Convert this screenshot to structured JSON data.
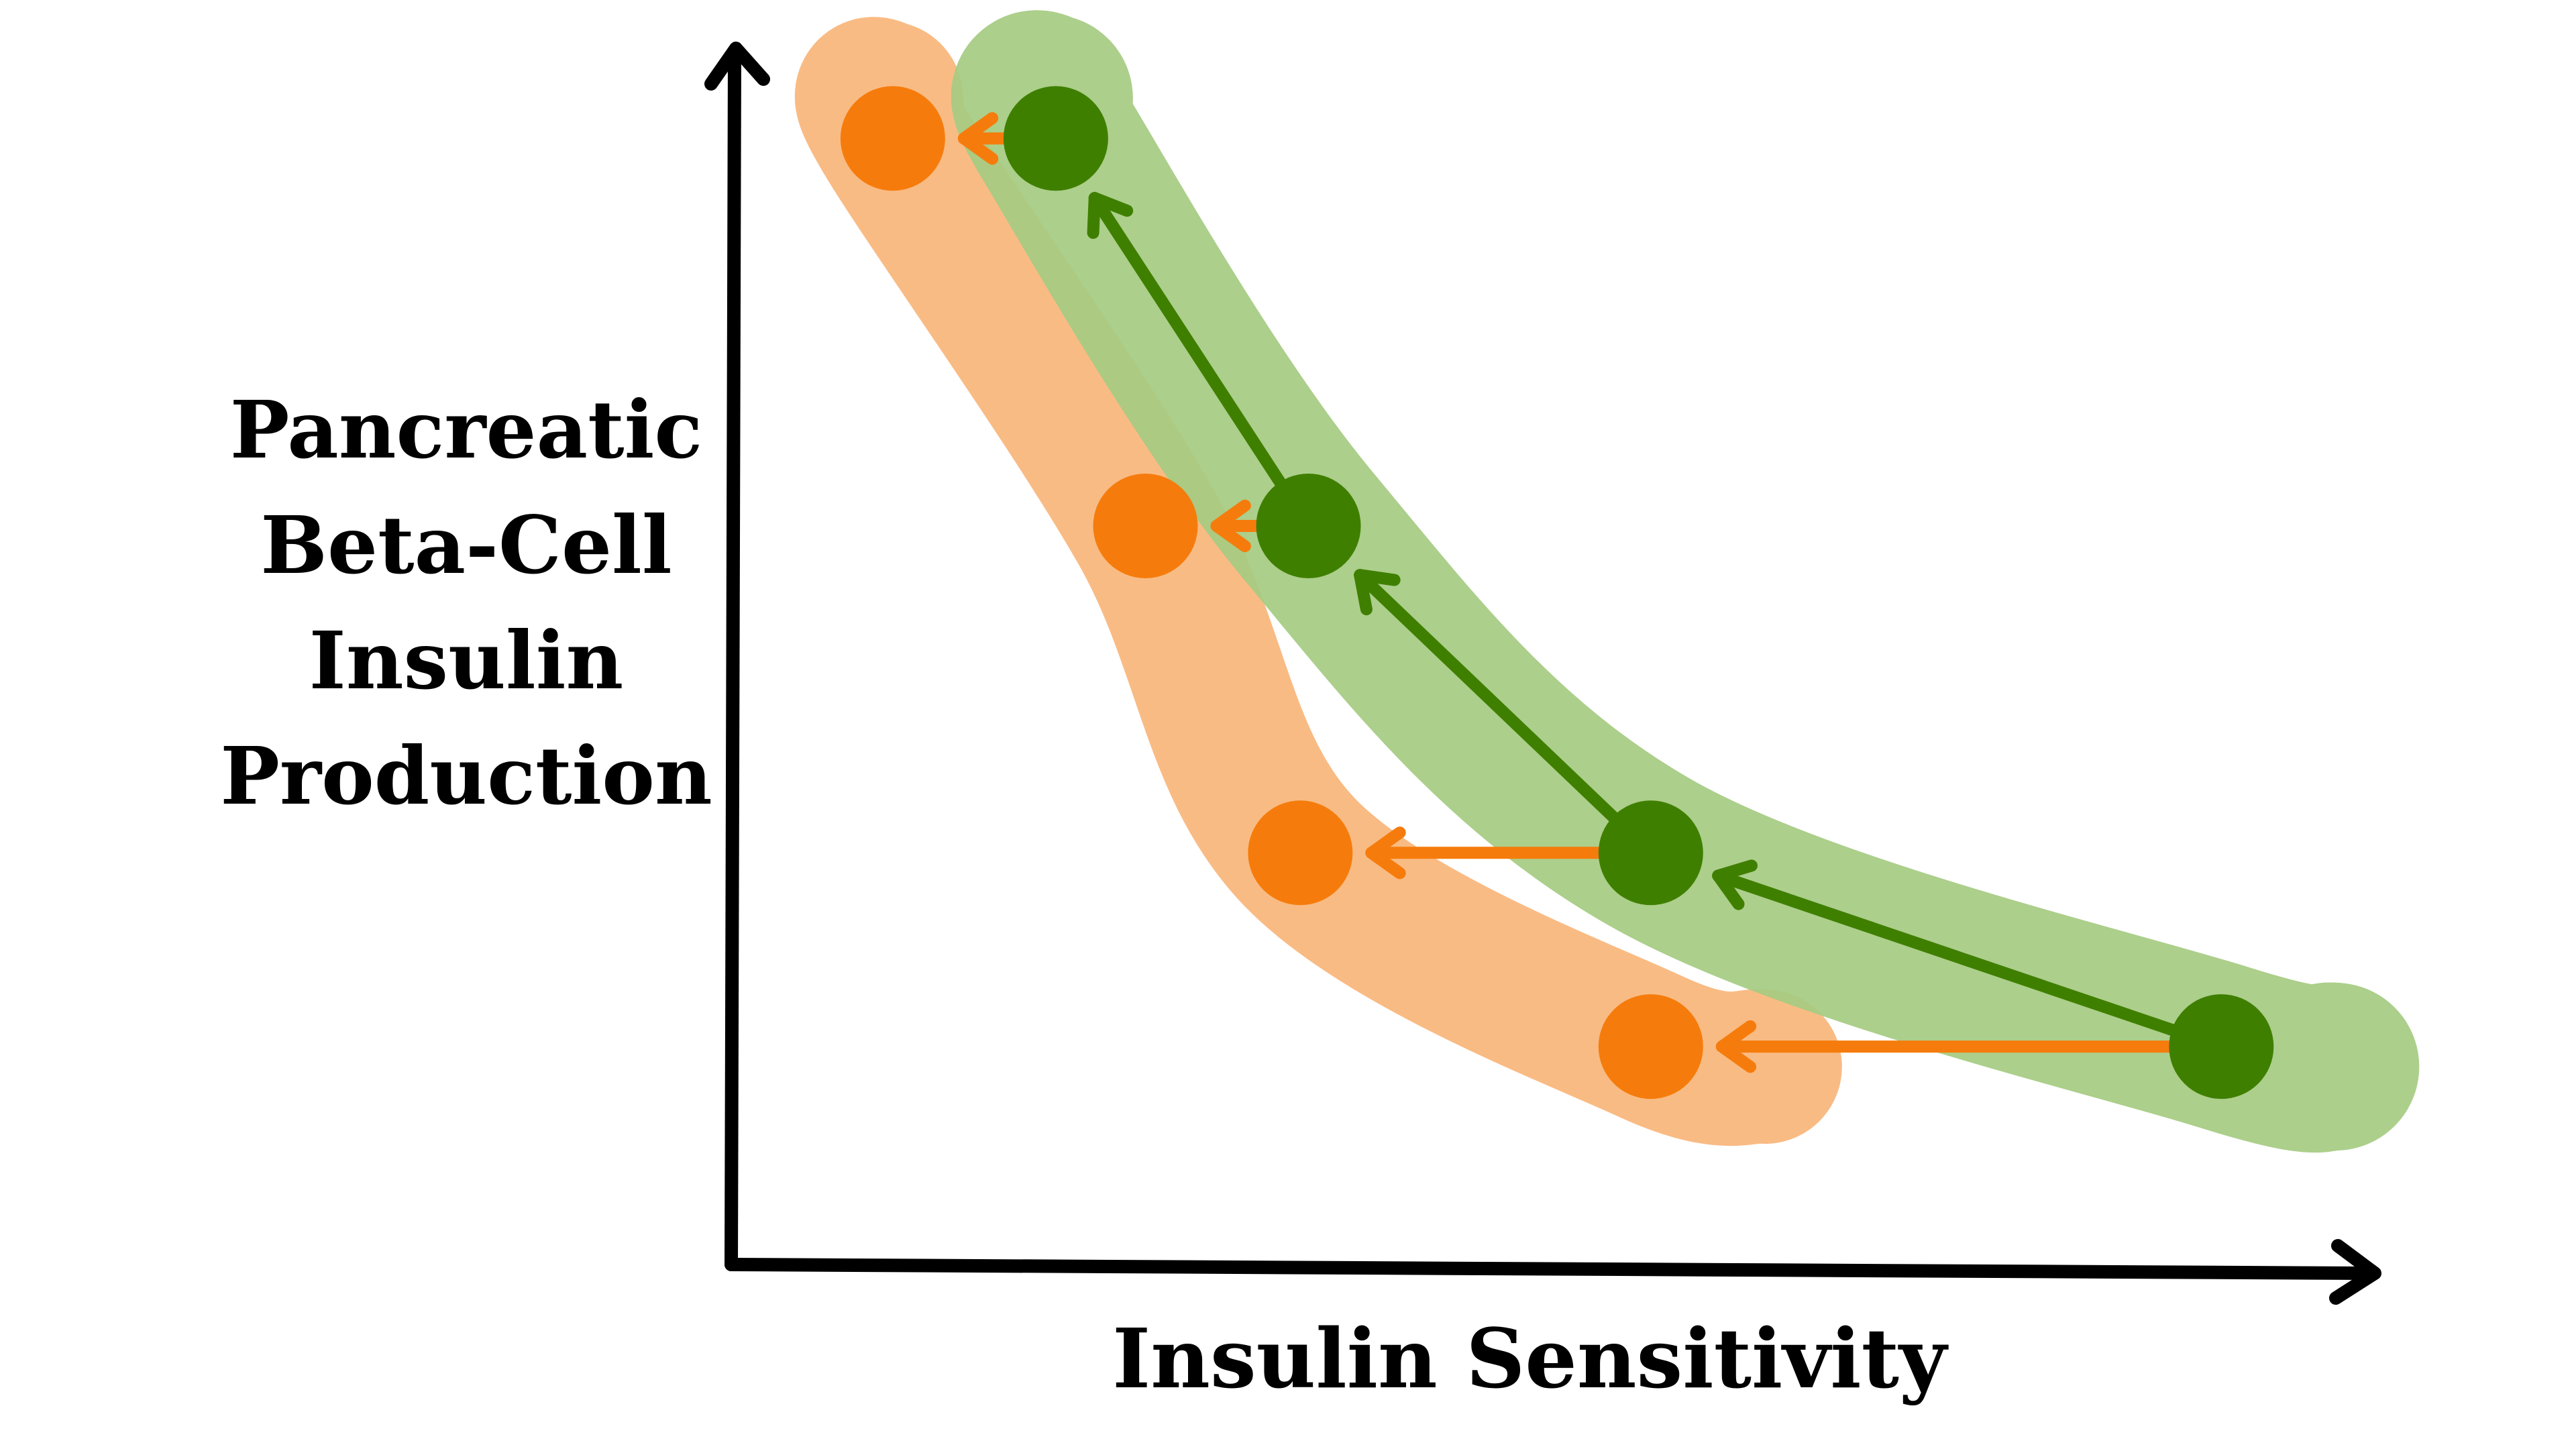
{
  "chart_data": {
    "type": "scatter",
    "title": "",
    "xlabel": "Insulin Sensitivity",
    "ylabel_lines": [
      "Pancreatic",
      "Beta-Cell",
      "Insulin",
      "Production"
    ],
    "xlim": [
      0,
      100
    ],
    "ylim": [
      0,
      100
    ],
    "grid": false,
    "legend": "none",
    "series": [
      {
        "name": "green",
        "color": "#3f7f00",
        "band_color": "#a6cb82",
        "points": [
          {
            "x": 19.5,
            "y": 93
          },
          {
            "x": 35,
            "y": 61
          },
          {
            "x": 56,
            "y": 34
          },
          {
            "x": 91,
            "y": 18
          }
        ]
      },
      {
        "name": "orange",
        "color": "#f57c0c",
        "band_color": "#f9bb84",
        "points": [
          {
            "x": 9.5,
            "y": 93
          },
          {
            "x": 25,
            "y": 61
          },
          {
            "x": 34.5,
            "y": 34
          },
          {
            "x": 56,
            "y": 18
          }
        ]
      }
    ],
    "arrows": [
      {
        "from": [
          91,
          18
        ],
        "to": [
          56,
          34
        ],
        "color": "#3f7f00"
      },
      {
        "from": [
          56,
          34
        ],
        "to": [
          35,
          61
        ],
        "color": "#3f7f00"
      },
      {
        "from": [
          35,
          61
        ],
        "to": [
          19.5,
          93
        ],
        "color": "#3f7f00"
      },
      {
        "from": [
          91,
          18
        ],
        "to": [
          56,
          18
        ],
        "color": "#f57c0c"
      },
      {
        "from": [
          56,
          34
        ],
        "to": [
          34.5,
          34
        ],
        "color": "#f57c0c"
      },
      {
        "from": [
          35,
          61
        ],
        "to": [
          25,
          61
        ],
        "color": "#f57c0c"
      },
      {
        "from": [
          19.5,
          93
        ],
        "to": [
          9.5,
          93
        ],
        "color": "#f57c0c"
      }
    ]
  }
}
